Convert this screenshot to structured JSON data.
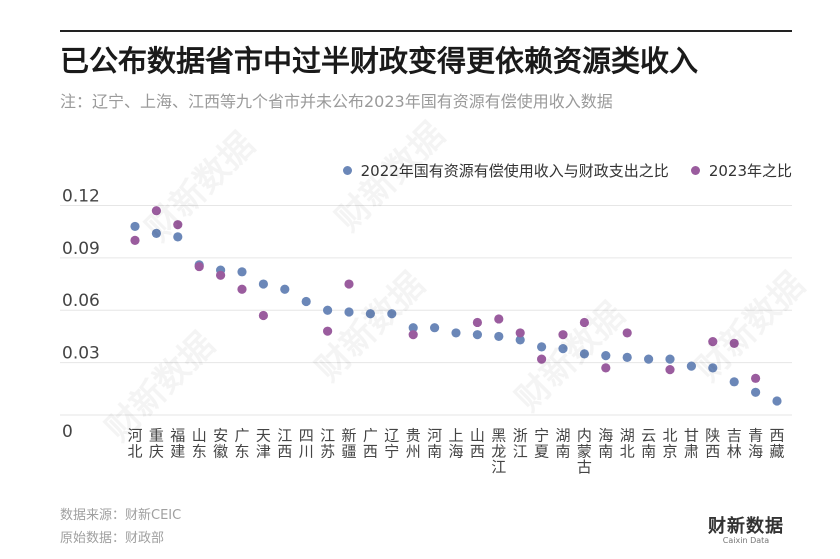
{
  "title": "已公布数据省市中过半财政变得更依赖资源类收入",
  "subtitle": "注：辽宁、上海、江西等九个省市并未公布2023年国有资源有偿使用收入数据",
  "footer": {
    "source": "数据来源：财新CEIC",
    "original": "原始数据：财政部"
  },
  "logo": {
    "main": "财新数据",
    "sub": "Caixin Data"
  },
  "watermark_text": "财新数据",
  "colors": {
    "series_2022": "#6b87b8",
    "series_2023": "#9a5c9e",
    "gridline": "#e6e6e6",
    "axis_text": "#444444"
  },
  "chart_data": {
    "type": "scatter",
    "categories": [
      "河北",
      "重庆",
      "福建",
      "山东",
      "安徽",
      "广东",
      "天津",
      "江西",
      "四川",
      "江苏",
      "新疆",
      "广西",
      "辽宁",
      "贵州",
      "河南",
      "上海",
      "山西",
      "黑龙江",
      "浙江",
      "宁夏",
      "湖南",
      "内蒙古",
      "海南",
      "湖北",
      "云南",
      "北京",
      "甘肃",
      "陕西",
      "吉林",
      "青海",
      "西藏"
    ],
    "series": [
      {
        "name": "2022年国有资源有偿使用收入与财政支出之比",
        "values": [
          0.108,
          0.104,
          0.102,
          0.086,
          0.083,
          0.082,
          0.075,
          0.072,
          0.065,
          0.06,
          0.059,
          0.058,
          0.058,
          0.05,
          0.05,
          0.047,
          0.046,
          0.045,
          0.043,
          0.039,
          0.038,
          0.035,
          0.034,
          0.033,
          0.032,
          0.032,
          0.028,
          0.027,
          0.019,
          0.013,
          0.008
        ]
      },
      {
        "name": "2023年之比",
        "values": [
          0.1,
          0.117,
          0.109,
          0.085,
          0.08,
          0.072,
          0.057,
          null,
          null,
          0.048,
          0.075,
          null,
          null,
          0.046,
          null,
          null,
          0.053,
          0.055,
          0.047,
          0.032,
          0.046,
          0.053,
          0.027,
          0.047,
          null,
          0.026,
          null,
          0.042,
          0.041,
          0.021,
          null
        ]
      }
    ],
    "yticks": [
      0,
      0.03,
      0.06,
      0.09,
      0.12
    ],
    "ytick_labels": [
      "0",
      "0.03",
      "0.06",
      "0.09",
      "0.12"
    ],
    "ylim": [
      0,
      0.13
    ],
    "grid": true,
    "legend": "top-right"
  }
}
